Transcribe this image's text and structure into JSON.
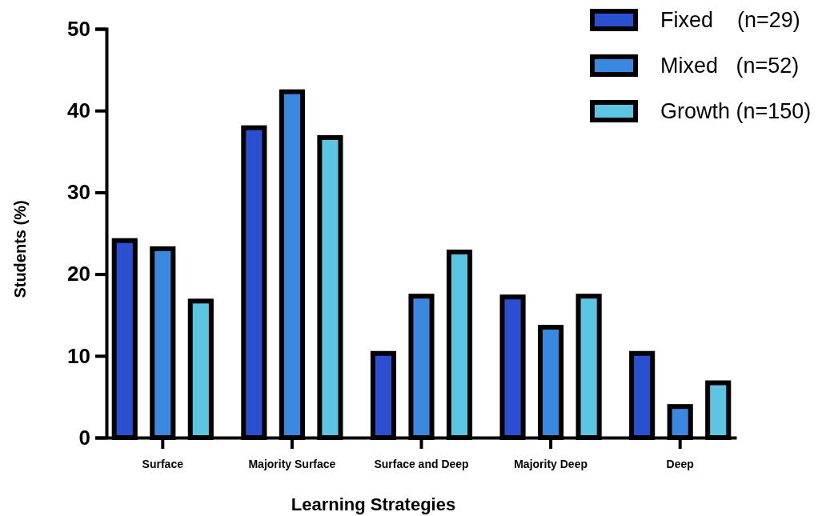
{
  "chart_data": {
    "type": "bar",
    "xlabel": "Learning Strategies",
    "ylabel": "Students (%)",
    "categories": [
      "Surface",
      "Majority Surface",
      "Surface and Deep",
      "Majority Deep",
      "Deep"
    ],
    "series": [
      {
        "name": "Fixed    (n=29)",
        "color": "#2a4fd0",
        "values": [
          24.1,
          37.9,
          10.3,
          17.2,
          10.3
        ]
      },
      {
        "name": "Mixed   (n=52)",
        "color": "#3a88e0",
        "values": [
          23.1,
          42.3,
          17.3,
          13.5,
          3.8
        ]
      },
      {
        "name": "Growth (n=150)",
        "color": "#5cc6e2",
        "values": [
          16.7,
          36.7,
          22.7,
          17.3,
          6.7
        ]
      }
    ],
    "ylim": [
      0,
      50
    ],
    "yticks": [
      0,
      10,
      20,
      30,
      40,
      50
    ],
    "grid": false,
    "legend": "top right"
  }
}
